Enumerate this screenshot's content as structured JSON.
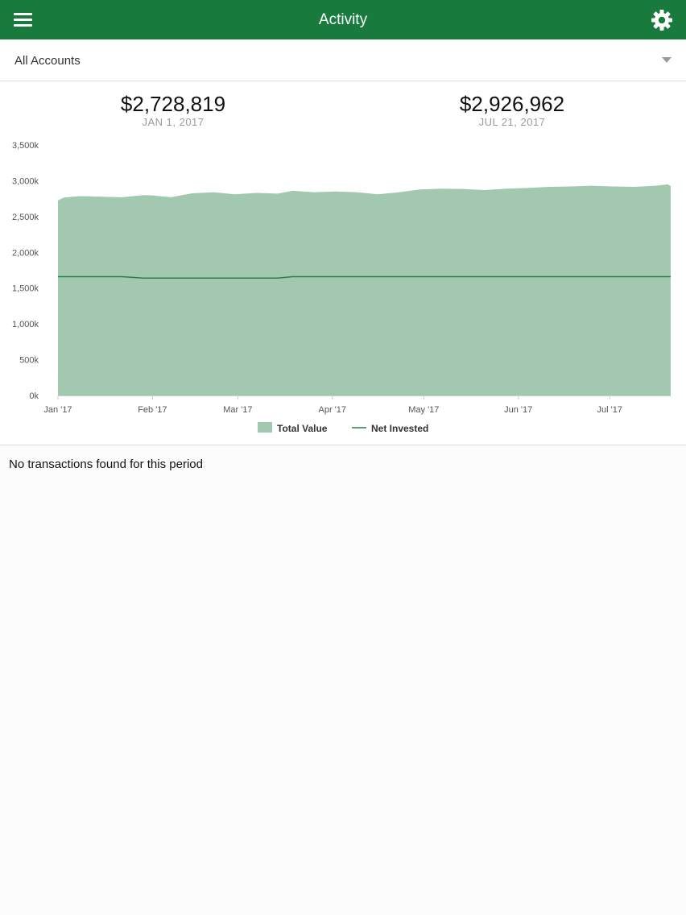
{
  "header": {
    "title": "Activity",
    "menu_icon": "hamburger-menu-icon",
    "settings_icon": "gear-icon",
    "bar_color": "#187b3d"
  },
  "account_selector": {
    "value": "All Accounts"
  },
  "summary": {
    "start": {
      "value": "$2,728,819",
      "date": "JAN 1, 2017"
    },
    "end": {
      "value": "$2,926,962",
      "date": "JUL 21, 2017"
    }
  },
  "chart_data": {
    "type": "area",
    "x_unit": "day of 2017",
    "x_start": "2017-01-01",
    "x": [
      1,
      3,
      8,
      15,
      22,
      29,
      32,
      38,
      45,
      52,
      59,
      66,
      73,
      78,
      85,
      92,
      99,
      106,
      113,
      120,
      127,
      134,
      141,
      148,
      155,
      162,
      169,
      176,
      183,
      190,
      197,
      201,
      202
    ],
    "x_ticks": [
      "Jan '17",
      "Feb '17",
      "Mar '17",
      "Apr '17",
      "May '17",
      "Jun '17",
      "Jul '17"
    ],
    "x_tick_days": [
      1,
      32,
      60,
      91,
      121,
      152,
      182
    ],
    "ylim": [
      0,
      3500
    ],
    "y_ticks": [
      "0k",
      "500k",
      "1,000k",
      "1,500k",
      "2,000k",
      "2,500k",
      "3,000k",
      "3,500k"
    ],
    "series": [
      {
        "name": "Total Value",
        "kind": "area",
        "color": "#a2c9b0",
        "values": [
          2728,
          2765,
          2785,
          2778,
          2770,
          2800,
          2795,
          2770,
          2825,
          2840,
          2810,
          2830,
          2820,
          2860,
          2840,
          2850,
          2840,
          2810,
          2840,
          2880,
          2890,
          2885,
          2870,
          2890,
          2900,
          2915,
          2920,
          2930,
          2920,
          2915,
          2930,
          2950,
          2927
        ]
      },
      {
        "name": "Net Invested",
        "kind": "line",
        "color": "#2b7d4a",
        "values": [
          1660,
          1660,
          1660,
          1660,
          1660,
          1640,
          1640,
          1640,
          1640,
          1640,
          1640,
          1640,
          1640,
          1660,
          1660,
          1660,
          1660,
          1660,
          1660,
          1660,
          1660,
          1660,
          1660,
          1660,
          1660,
          1660,
          1660,
          1660,
          1660,
          1660,
          1660,
          1660,
          1660
        ]
      }
    ],
    "legend": {
      "placement": "bottom-center"
    }
  },
  "transactions": {
    "empty_message": "No transactions found for this period"
  }
}
